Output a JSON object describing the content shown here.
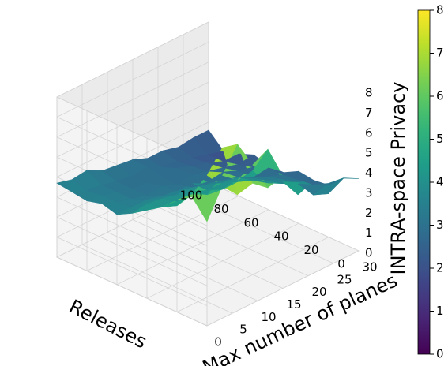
{
  "chart_data": {
    "type": "surface3d",
    "colormap": "viridis",
    "x_axis": {
      "label": "Releases",
      "ticks": [
        0,
        20,
        40,
        60,
        80,
        100
      ],
      "range": [
        0,
        100
      ]
    },
    "y_axis": {
      "label": "Max number of planes",
      "ticks": [
        0,
        5,
        10,
        15,
        20,
        25,
        30
      ],
      "range": [
        0,
        30
      ]
    },
    "z_axis": {
      "label": "INTRA-space Privacy",
      "ticks": [
        0,
        1,
        2,
        3,
        4,
        5,
        6,
        7,
        8
      ],
      "range": [
        0,
        8
      ]
    },
    "colorbar": {
      "ticks": [
        0,
        1,
        2,
        3,
        4,
        5,
        6,
        7,
        8
      ],
      "range": [
        0,
        8
      ]
    },
    "releases": [
      0,
      10,
      20,
      30,
      40,
      50,
      60,
      70,
      80,
      90,
      100
    ],
    "planes": [
      0,
      3,
      6,
      9,
      12,
      15,
      18,
      21,
      24,
      27,
      30
    ],
    "z_values": [
      [
        5.2,
        6.6,
        5.8,
        6.0,
        5.4,
        5.6,
        4.3,
        4.6,
        3.6,
        4.0,
        3.6
      ],
      [
        6.1,
        6.8,
        7.8,
        7.6,
        6.2,
        6.6,
        4.6,
        4.2,
        3.2,
        3.4,
        3.3
      ],
      [
        5.6,
        5.5,
        6.1,
        5.7,
        5.1,
        5.2,
        4.2,
        3.8,
        3.4,
        3.0,
        2.6
      ],
      [
        4.9,
        4.6,
        4.8,
        4.4,
        4.3,
        4.3,
        4.0,
        3.6,
        3.3,
        2.9,
        2.5
      ],
      [
        4.4,
        4.2,
        4.1,
        4.2,
        3.9,
        3.9,
        3.8,
        3.4,
        3.1,
        2.8,
        2.6
      ],
      [
        3.9,
        4.0,
        3.9,
        3.7,
        3.9,
        3.5,
        3.3,
        3.1,
        2.7,
        2.8,
        2.2
      ],
      [
        3.5,
        3.5,
        3.5,
        3.3,
        3.2,
        3.0,
        2.9,
        3.0,
        2.7,
        2.5,
        2.2
      ],
      [
        3.7,
        3.4,
        3.2,
        3.0,
        3.1,
        2.8,
        2.9,
        2.7,
        2.5,
        2.3,
        2.4
      ],
      [
        3.5,
        3.4,
        3.2,
        3.0,
        2.9,
        2.8,
        2.9,
        2.6,
        2.4,
        2.1,
        2.1
      ],
      [
        3.6,
        3.3,
        3.2,
        3.0,
        2.9,
        3.0,
        2.6,
        2.5,
        2.3,
        2.1,
        1.9
      ],
      [
        3.7,
        3.5,
        3.6,
        3.2,
        3.1,
        3.0,
        2.7,
        2.7,
        2.5,
        2.6,
        2.6
      ]
    ]
  }
}
